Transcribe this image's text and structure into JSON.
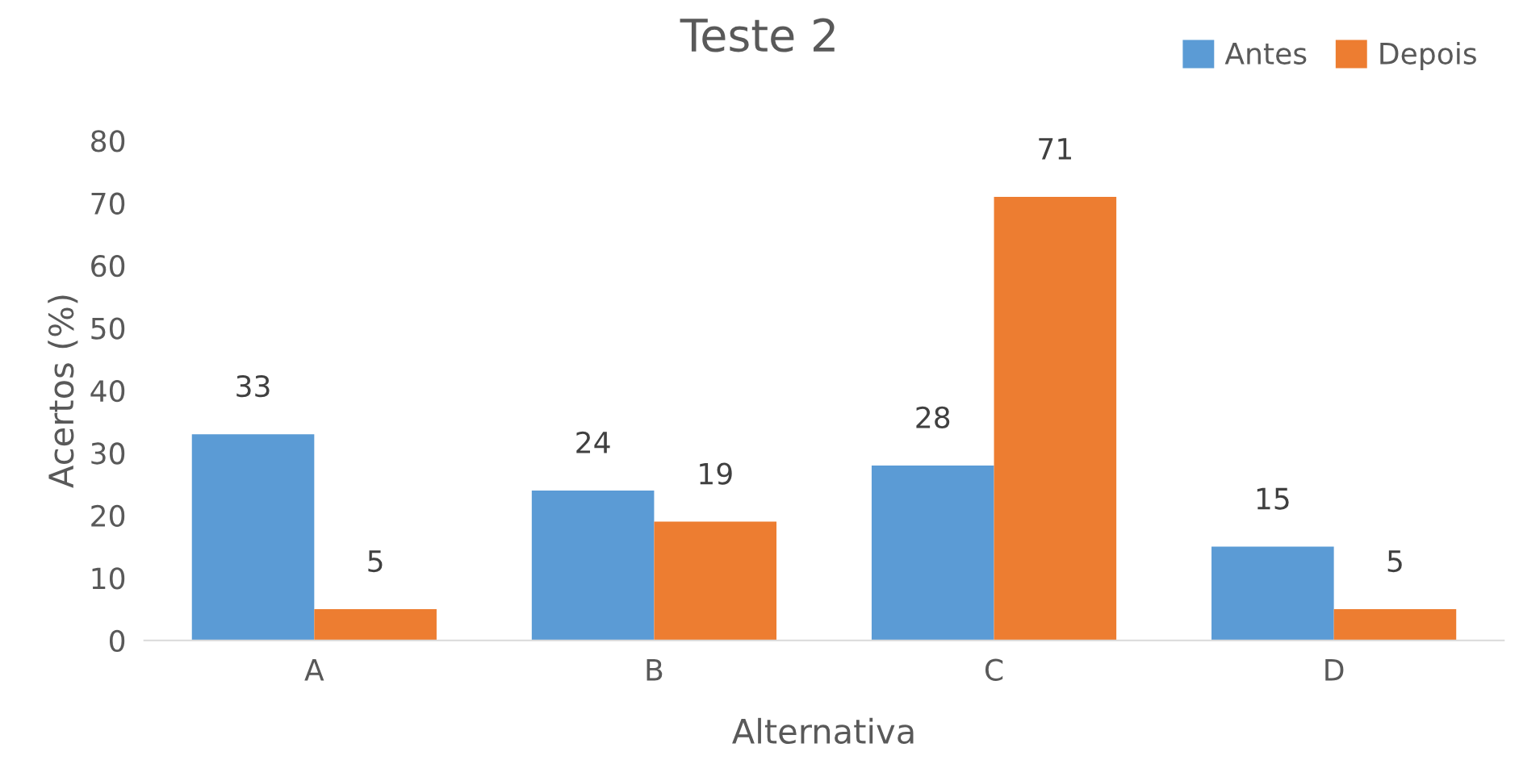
{
  "chart_data": {
    "type": "bar",
    "title": "Teste 2",
    "xlabel": "Alternativa",
    "ylabel": "Acertos (%)",
    "categories": [
      "A",
      "B",
      "C",
      "D"
    ],
    "series": [
      {
        "name": "Antes",
        "color": "#5b9bd5",
        "values": [
          33,
          24,
          28,
          15
        ]
      },
      {
        "name": "Depois",
        "color": "#ed7d31",
        "values": [
          5,
          19,
          71,
          5
        ]
      }
    ],
    "ylim": [
      0,
      80
    ],
    "yticks": [
      0,
      10,
      20,
      30,
      40,
      50,
      60,
      70,
      80
    ],
    "data_labels": true,
    "legend": "top right",
    "grid": false
  }
}
